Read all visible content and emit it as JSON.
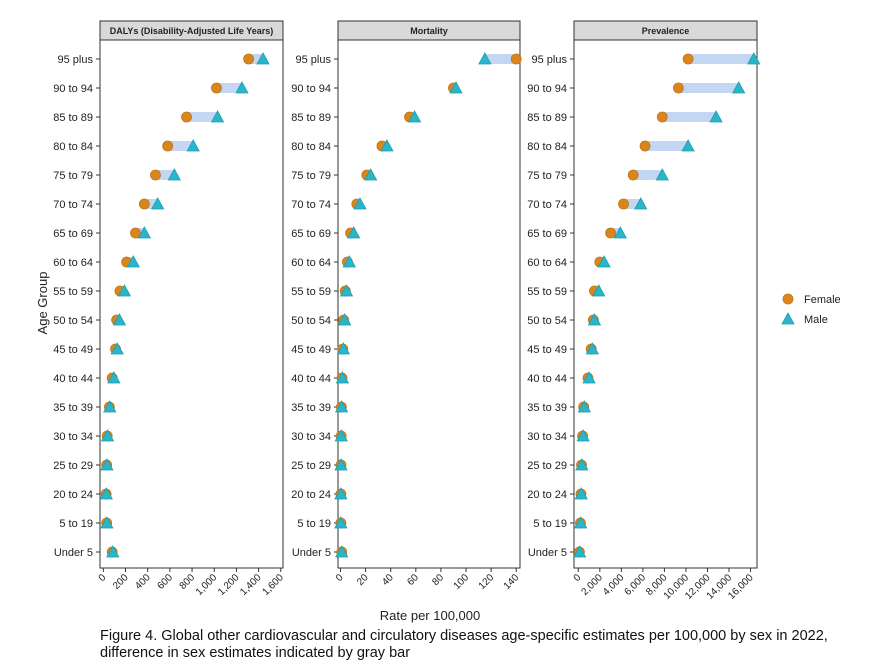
{
  "chart_data": {
    "type": "dumbbell",
    "y_axis_label": "Age Group",
    "x_axis_label": "Rate per 100,000",
    "age_groups": [
      "Under 5",
      "5 to 19",
      "20 to 24",
      "25 to 29",
      "30 to 34",
      "35 to 39",
      "40 to 44",
      "45 to 49",
      "50 to 54",
      "55 to 59",
      "60 to 64",
      "65 to 69",
      "70 to 74",
      "75 to 79",
      "80 to 84",
      "85 to 89",
      "90 to 94",
      "95 plus"
    ],
    "legend": {
      "position": "right",
      "items": [
        {
          "name": "Female",
          "color": "#d9861c",
          "shape": "circle"
        },
        {
          "name": "Male",
          "color": "#2bb5c9",
          "shape": "triangle"
        }
      ]
    },
    "gap_bar_color": "#b8cff0",
    "panels": [
      {
        "title": "DALYs (Disability-Adjusted Life Years)",
        "xlim": [
          -30,
          1620
        ],
        "ticks": [
          0,
          200,
          400,
          600,
          800,
          1000,
          1200,
          1400,
          1600
        ],
        "tick_labels": [
          "0",
          "200",
          "400",
          "600",
          "800",
          "1,000",
          "1,200",
          "1,400",
          "1,600"
        ],
        "female": [
          80,
          30,
          25,
          30,
          35,
          55,
          80,
          110,
          120,
          150,
          210,
          290,
          370,
          470,
          580,
          750,
          1020,
          1310
        ],
        "male": [
          85,
          32,
          27,
          32,
          38,
          58,
          95,
          125,
          145,
          190,
          270,
          370,
          490,
          640,
          810,
          1030,
          1250,
          1440
        ]
      },
      {
        "title": "Mortality",
        "xlim": [
          -2,
          143
        ],
        "ticks": [
          0,
          20,
          40,
          60,
          80,
          100,
          120,
          140
        ],
        "tick_labels": [
          "0",
          "20",
          "40",
          "60",
          "80",
          "100",
          "120",
          "140"
        ],
        "female": [
          1,
          0.3,
          0.3,
          0.4,
          0.5,
          0.7,
          1.2,
          1.8,
          2.5,
          3.8,
          5.5,
          8,
          13,
          21,
          33,
          55,
          90,
          140
        ],
        "male": [
          1,
          0.3,
          0.3,
          0.4,
          0.6,
          0.9,
          1.5,
          2.3,
          3.3,
          4.8,
          7,
          10.5,
          15.5,
          24,
          37,
          59,
          92,
          115
        ]
      },
      {
        "title": "Prevalence",
        "xlim": [
          -400,
          16600
        ],
        "ticks": [
          0,
          2000,
          4000,
          6000,
          8000,
          10000,
          12000,
          14000,
          16000
        ],
        "tick_labels": [
          "0",
          "2,000",
          "4,000",
          "6,000",
          "8,000",
          "10,000",
          "12,000",
          "14,000",
          "16,000"
        ],
        "female": [
          100,
          200,
          250,
          300,
          400,
          500,
          900,
          1200,
          1400,
          1500,
          2000,
          3000,
          4200,
          5100,
          6200,
          7800,
          9300,
          10200
        ],
        "male": [
          120,
          220,
          270,
          330,
          450,
          560,
          1000,
          1300,
          1500,
          1900,
          2400,
          3900,
          5800,
          7800,
          10200,
          12800,
          14900,
          16300
        ]
      }
    ]
  },
  "caption": "Figure 4. Global other cardiovascular and circulatory diseases age-specific estimates per 100,000 by sex in 2022, difference in sex estimates indicated by gray bar"
}
